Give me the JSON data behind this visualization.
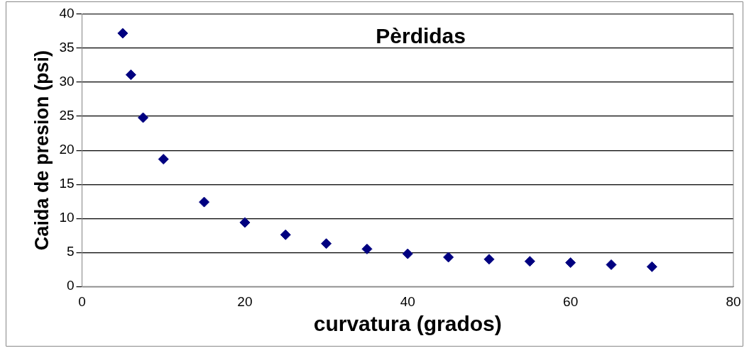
{
  "chart_data": {
    "type": "scatter",
    "title": "Pèrdidas",
    "xlabel": "curvatura (grados)",
    "ylabel": "Caida de presion (psi)",
    "x": [
      5,
      6,
      7.5,
      10,
      15,
      20,
      25,
      30,
      35,
      40,
      45,
      50,
      55,
      60,
      65,
      70
    ],
    "series": [
      {
        "color": "#000080",
        "values": [
          37.2,
          31.1,
          24.8,
          18.7,
          12.4,
          9.4,
          7.6,
          6.3,
          5.5,
          4.8,
          4.3,
          4.0,
          3.7,
          3.5,
          3.2,
          2.9
        ]
      }
    ],
    "xlim": [
      0,
      80
    ],
    "xticks": [
      0,
      20,
      40,
      60,
      80
    ],
    "ylim": [
      0,
      40
    ],
    "yticks": [
      0,
      5,
      10,
      15,
      20,
      25,
      30,
      35,
      40
    ],
    "grid": "y",
    "legend": false,
    "marker": "diamond"
  }
}
